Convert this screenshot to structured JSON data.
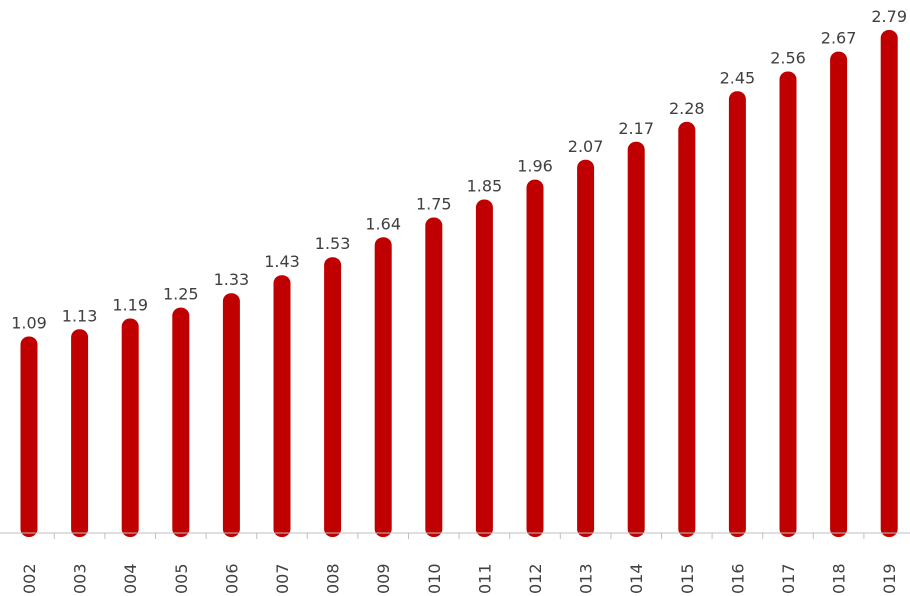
{
  "chart_data": {
    "type": "bar",
    "categories": [
      "002",
      "003",
      "004",
      "005",
      "006",
      "007",
      "008",
      "009",
      "010",
      "011",
      "012",
      "013",
      "014",
      "015",
      "016",
      "017",
      "018",
      "019"
    ],
    "series": [
      {
        "values": [
          1.09,
          1.13,
          1.19,
          1.25,
          1.33,
          1.43,
          1.53,
          1.64,
          1.75,
          1.85,
          1.96,
          2.07,
          2.17,
          2.28,
          2.45,
          2.56,
          2.67,
          2.79
        ],
        "color": "#c00000"
      }
    ],
    "data_labels": [
      "1.09",
      "1.13",
      "1.19",
      "1.25",
      "1.33",
      "1.43",
      "1.53",
      "1.64",
      "1.75",
      "1.85",
      "1.96",
      "2.07",
      "2.17",
      "2.28",
      "2.45",
      "2.56",
      "2.67",
      "2.79"
    ],
    "ylim": [
      0,
      2.86
    ],
    "grid": false,
    "legend": "none",
    "xlabel": "",
    "ylabel": "",
    "title": ""
  }
}
